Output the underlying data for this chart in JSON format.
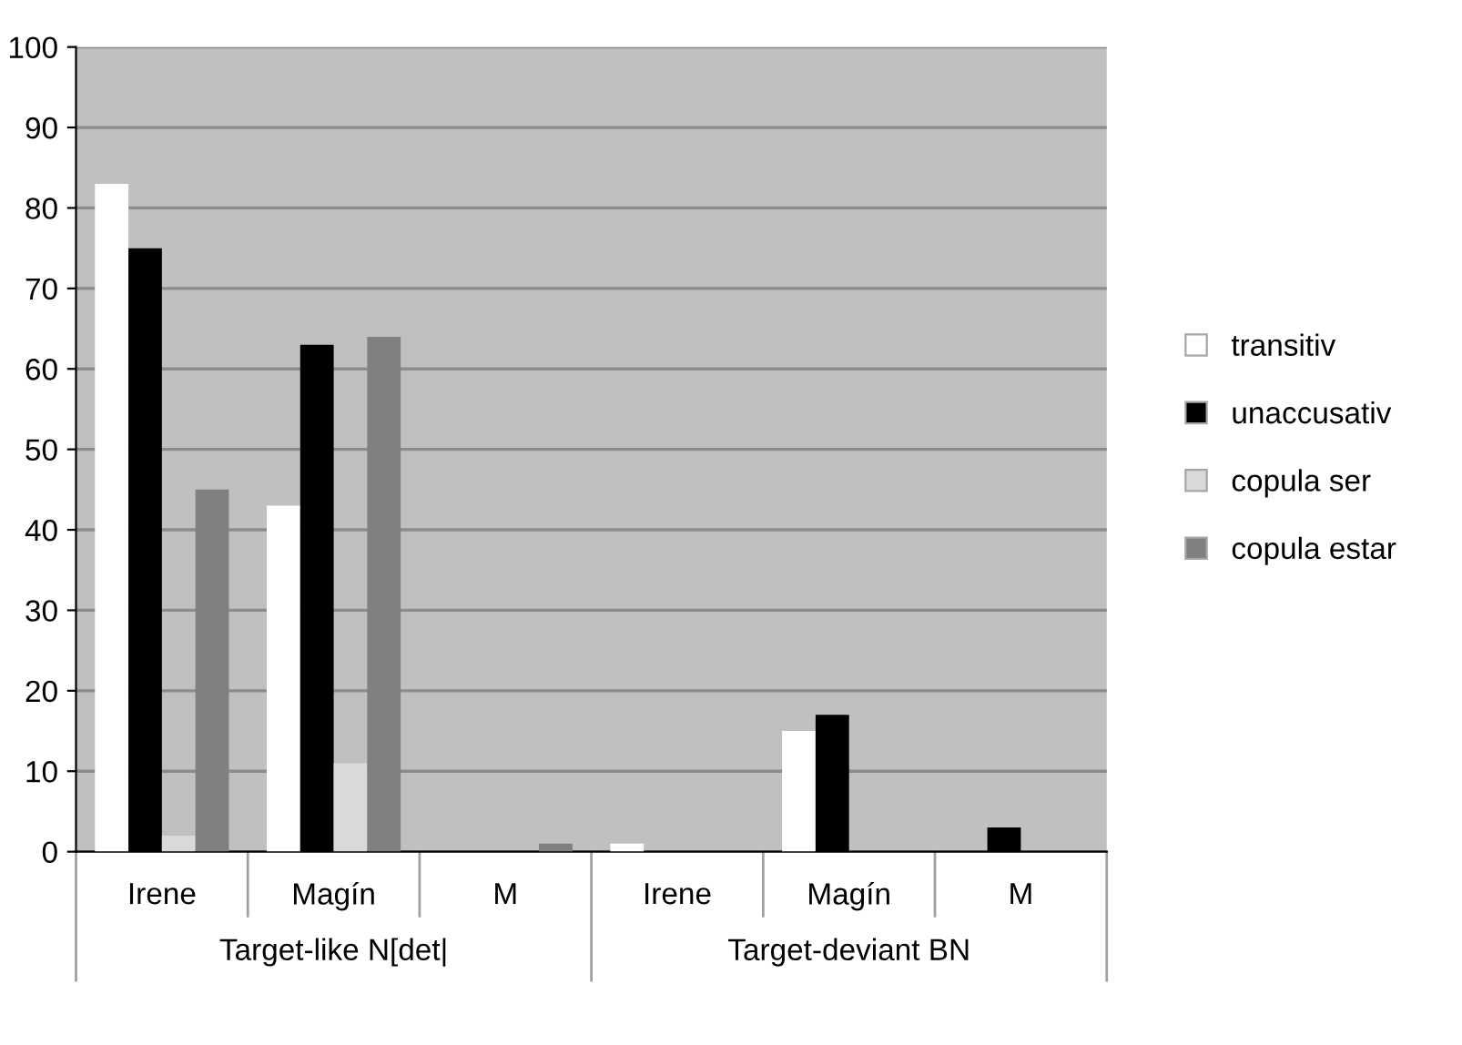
{
  "chart_data": {
    "type": "bar",
    "categories": [
      "Irene",
      "Magín",
      "M",
      "Irene",
      "Magín",
      "M"
    ],
    "series": [
      {
        "name": "transitiv",
        "color": "#ffffff",
        "values": [
          83,
          43,
          0,
          1,
          15,
          0
        ]
      },
      {
        "name": "unaccusativ",
        "color": "#000000",
        "values": [
          75,
          63,
          0,
          0,
          17,
          3
        ]
      },
      {
        "name": "copula ser",
        "color": "#d9d9d9",
        "values": [
          2,
          11,
          0,
          0,
          0,
          0
        ]
      },
      {
        "name": "copula estar",
        "color": "#808080",
        "values": [
          45,
          64,
          1,
          0,
          0,
          0
        ]
      }
    ],
    "annotations": [
      "Target-like N[det|",
      "Target-deviant BN"
    ],
    "ylim": [
      0,
      100
    ],
    "yticks": [
      0,
      10,
      20,
      30,
      40,
      50,
      60,
      70,
      80,
      90,
      100
    ],
    "grid": "y",
    "legend": "right"
  }
}
